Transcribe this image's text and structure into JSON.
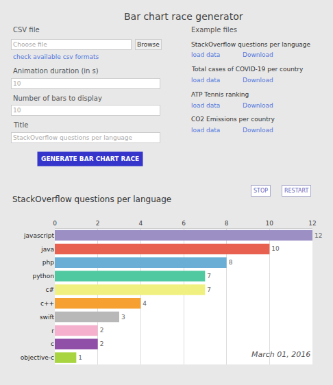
{
  "chart_data": {
    "type": "bar",
    "orientation": "horizontal",
    "title": "StackOverflow questions per language",
    "categories": [
      "javascript",
      "java",
      "php",
      "python",
      "c#",
      "c++",
      "swift",
      "r",
      "c",
      "objective-c"
    ],
    "values": [
      12,
      10,
      8,
      7,
      7,
      4,
      3,
      2,
      2,
      1
    ],
    "colors": [
      "#9b8fc4",
      "#e86050",
      "#6aaed6",
      "#50c8a0",
      "#f0f080",
      "#f5a030",
      "#b8b8b8",
      "#f4b0cc",
      "#9050a8",
      "#a8d440"
    ],
    "xlim": [
      0,
      12
    ],
    "xticks": [
      0,
      2,
      4,
      6,
      8,
      10,
      12
    ],
    "grid": true,
    "data_labels": true,
    "annotations": [
      "Bar chart race generator",
      "CSV file",
      "Choose file",
      "Browse",
      "check available csv formats",
      "Animation duration (in s)",
      "10",
      "Number of bars to display",
      "10",
      "Title",
      "StackOverflow questions per language",
      "GENERATE BAR CHART RACE",
      "Example files",
      "StackOverflow questions per language",
      "load data",
      "Download",
      "Total cases of COVID-19 per country",
      "load data",
      "Download",
      "ATP Tennis ranking",
      "load data",
      "Download",
      "CO2 Emissions per country",
      "load data",
      "Download",
      "STOP",
      "RESTART",
      "March 01, 2016"
    ]
  }
}
